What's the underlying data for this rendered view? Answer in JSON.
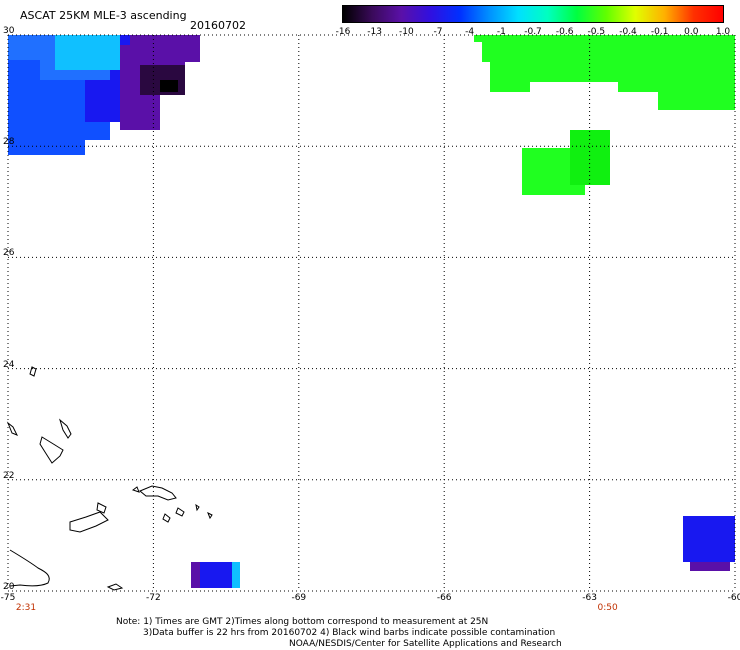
{
  "header": {
    "product": "ASCAT 25KM MLE-3 ascending",
    "date": "20160702"
  },
  "colorbar": {
    "labels": [
      "-16",
      "-13",
      "-10",
      "-7",
      "-4",
      "-1",
      "-0.7",
      "-0.6",
      "-0.5",
      "-0.4",
      "-0.1",
      "0.0",
      "1.0"
    ],
    "colors": [
      "#000000",
      "#3a0a5a",
      "#5a10a8",
      "#3010e0",
      "#0030ff",
      "#0090ff",
      "#00e0ff",
      "#00ffc0",
      "#00ff40",
      "#60ff00",
      "#e0ff00",
      "#ffb000",
      "#ff3000",
      "#ff0000"
    ]
  },
  "map": {
    "lat_labels": [
      "30",
      "28",
      "26",
      "24",
      "22",
      "20"
    ],
    "lon_labels": [
      "-75",
      "-72",
      "-69",
      "-66",
      "-63",
      "-60"
    ],
    "time_labels": [
      {
        "text": "2:31",
        "lon": -75
      },
      {
        "text": "0:50",
        "lon": -63
      }
    ],
    "extent": {
      "lon_min": -75,
      "lon_max": -60,
      "lat_min": 20,
      "lat_max": 30
    },
    "colors": {
      "blue": "#1818f0",
      "mid_blue": "#1050ff",
      "light_blue": "#2070ff",
      "cyan": "#10c0ff",
      "purple": "#5a10a8",
      "dark_purple": "#2a0840",
      "green": "#20ff20",
      "green2": "#10f010",
      "coast": "#000000"
    }
  },
  "footer": {
    "note1": "Note: 1) Times are GMT 2)Times along bottom correspond to measurement at 25N",
    "note2": "3)Data buffer is 22 hrs from 20160702 4) Black wind barbs indicate possible contamination",
    "note3": "NOAA/NESDIS/Center for Satellite Applications and Research"
  }
}
